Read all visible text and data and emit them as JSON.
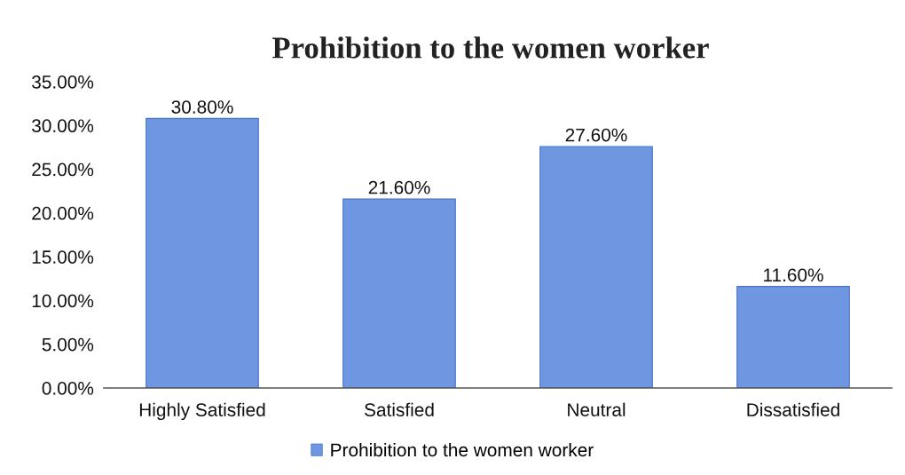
{
  "chart_data": {
    "type": "bar",
    "title": "Prohibition to the women worker",
    "categories": [
      "Highly Satisfied",
      "Satisfied",
      "Neutral",
      "Dissatisfied"
    ],
    "series": [
      {
        "name": "Prohibition to the women worker",
        "color": "#6f96e0",
        "values": [
          30.8,
          21.6,
          27.6,
          11.6
        ],
        "value_labels": [
          "30.80%",
          "21.60%",
          "27.60%",
          "11.60%"
        ]
      }
    ],
    "ylim": [
      0,
      35
    ],
    "yticks": [
      {
        "value": 0,
        "label": "0.00%"
      },
      {
        "value": 5,
        "label": "5.00%"
      },
      {
        "value": 10,
        "label": "10.00%"
      },
      {
        "value": 15,
        "label": "15.00%"
      },
      {
        "value": 20,
        "label": "20.00%"
      },
      {
        "value": 25,
        "label": "25.00%"
      },
      {
        "value": 30,
        "label": "30.00%"
      },
      {
        "value": 35,
        "label": "35.00%"
      }
    ],
    "grid": false,
    "legend": "bottom"
  }
}
